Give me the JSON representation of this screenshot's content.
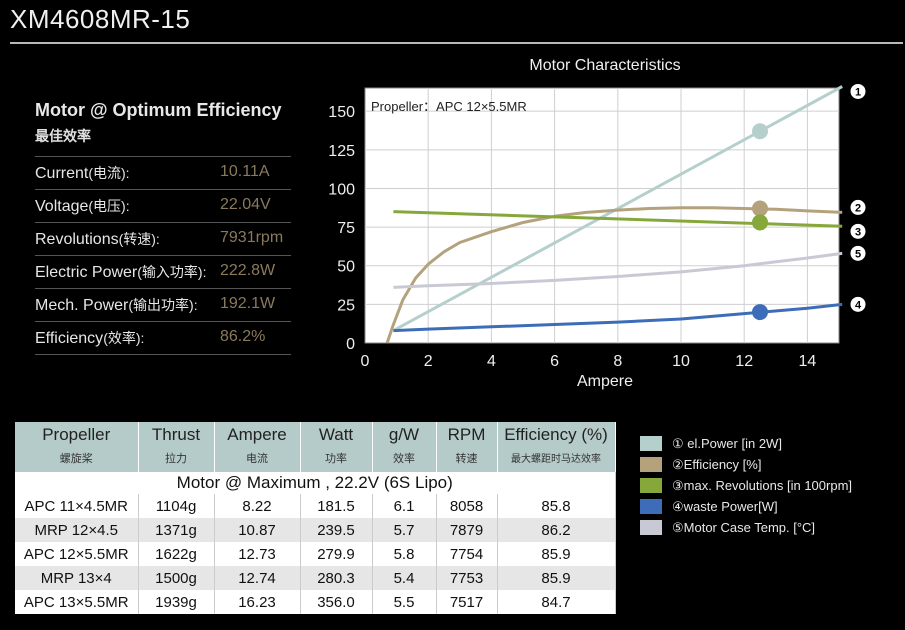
{
  "title": "XM4608MR-15",
  "spec": {
    "heading": "Motor @ Optimum Efficiency",
    "subheading": "最佳效率",
    "rows": [
      {
        "label": "Current",
        "label_cn": "(电流):",
        "value": "10.11A"
      },
      {
        "label": "Voltage",
        "label_cn": "(电压):",
        "value": "22.04V"
      },
      {
        "label": "Revolutions",
        "label_cn": "(转速):",
        "value": "7931rpm"
      },
      {
        "label": "Electric Power",
        "label_cn": "(输入功率):",
        "value": "222.8W"
      },
      {
        "label": "Mech. Power",
        "label_cn": "(输出功率):",
        "value": "192.1W"
      },
      {
        "label": "Efficiency",
        "label_cn": "(效率):",
        "value": "86.2%"
      }
    ]
  },
  "chart_data": {
    "type": "line",
    "title": "Motor Characteristics",
    "annotation": "Propeller：APC 12×5.5MR",
    "xlabel": "Ampere",
    "ylabel": "",
    "xlim": [
      0,
      15
    ],
    "ylim": [
      0,
      165
    ],
    "xticks": [
      0,
      2,
      4,
      6,
      8,
      10,
      12,
      14
    ],
    "yticks": [
      0,
      25,
      50,
      75,
      100,
      125,
      150
    ],
    "marker_x": 12.5,
    "series": [
      {
        "id": "1",
        "name": "el.Power [in 2W]",
        "color": "#b5cfcc",
        "x": [
          0.9,
          15.1
        ],
        "y": [
          8,
          166
        ],
        "marker_y": 137
      },
      {
        "id": "2",
        "name": "Efficiency [%]",
        "color": "#b3a27c",
        "x": [
          0.7,
          0.9,
          1.2,
          1.6,
          2.0,
          2.5,
          3.0,
          4.0,
          5.0,
          6.0,
          7.0,
          8.0,
          9.0,
          10.0,
          11.0,
          12.0,
          13.0,
          14.0,
          15.1
        ],
        "y": [
          0,
          12,
          28,
          42,
          51,
          59,
          65,
          72,
          78,
          82,
          84.5,
          86,
          87,
          87.5,
          87.5,
          87,
          86.5,
          85.5,
          84.5
        ],
        "marker_y": 87
      },
      {
        "id": "3",
        "name": "max. Revolutions [in 100rpm]",
        "color": "#86a83a",
        "x": [
          0.9,
          15.1
        ],
        "y": [
          85,
          75.5
        ],
        "marker_y": 78
      },
      {
        "id": "4",
        "name": "waste Power[W]",
        "color": "#3d6db8",
        "x": [
          0.9,
          2,
          4,
          6,
          8,
          10,
          12,
          14,
          15.1
        ],
        "y": [
          8,
          9,
          10.5,
          12,
          13.5,
          15.5,
          19,
          22.5,
          25
        ],
        "marker_y": 20
      },
      {
        "id": "5",
        "name": "Motor Case Temp. [°C]",
        "color": "#c9c9d6",
        "x": [
          0.9,
          2,
          4,
          6,
          8,
          10,
          12,
          14,
          15.1
        ],
        "y": [
          36,
          37,
          38.5,
          40.5,
          43,
          46,
          50,
          55,
          58
        ],
        "marker_y": null
      }
    ]
  },
  "table": {
    "headers": [
      {
        "en": "Propeller",
        "cn": "螺旋桨"
      },
      {
        "en": "Thrust",
        "cn": "拉力"
      },
      {
        "en": "Ampere",
        "cn": "电流"
      },
      {
        "en": "Watt",
        "cn": "功率"
      },
      {
        "en": "g/W",
        "cn": "效率"
      },
      {
        "en": "RPM",
        "cn": "转速"
      },
      {
        "en": "Efficiency (%)",
        "cn": "最大螺距时马达效率"
      }
    ],
    "subtitle": "Motor @ Maximum , 22.2V (6S Lipo)",
    "rows": [
      [
        "APC 11×4.5MR",
        "1104g",
        "8.22",
        "181.5",
        "6.1",
        "8058",
        "85.8"
      ],
      [
        "MRP 12×4.5",
        "1371g",
        "10.87",
        "239.5",
        "5.7",
        "7879",
        "86.2"
      ],
      [
        "APC 12×5.5MR",
        "1622g",
        "12.73",
        "279.9",
        "5.8",
        "7754",
        "85.9"
      ],
      [
        "MRP 13×4",
        "1500g",
        "12.74",
        "280.3",
        "5.4",
        "7753",
        "85.9"
      ],
      [
        "APC 13×5.5MR",
        "1939g",
        "16.23",
        "356.0",
        "5.5",
        "7517",
        "84.7"
      ]
    ]
  },
  "legend": [
    {
      "num": "①",
      "label": "el.Power [in 2W]",
      "color": "#b5cfcc"
    },
    {
      "num": "②",
      "label": "Efficiency [%]",
      "color": "#b3a27c"
    },
    {
      "num": "③",
      "label": "max. Revolutions [in 100rpm]",
      "color": "#86a83a"
    },
    {
      "num": "④",
      "label": "waste Power[W]",
      "color": "#3d6db8"
    },
    {
      "num": "⑤",
      "label": "Motor Case Temp. [°C]",
      "color": "#c9c9d6"
    }
  ]
}
